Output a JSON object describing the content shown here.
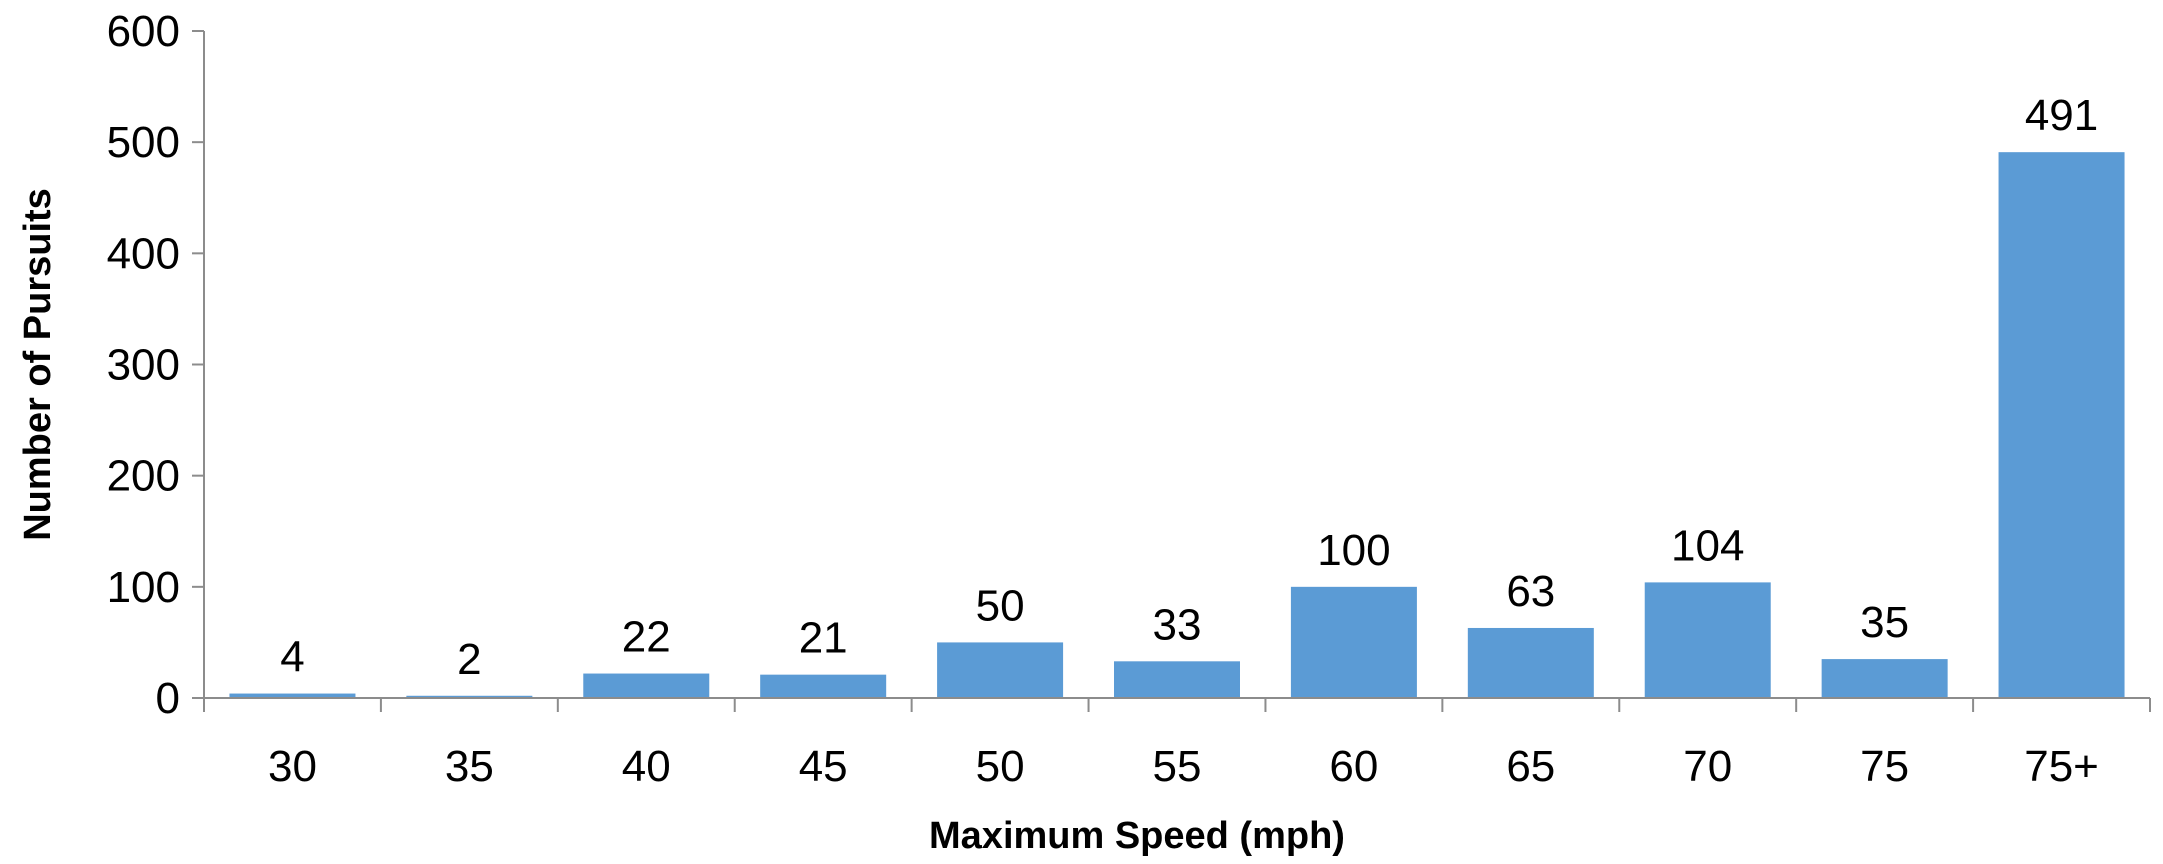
{
  "chart_data": {
    "type": "bar",
    "title": "",
    "xlabel": "Maximum Speed (mph)",
    "ylabel": "Number of Pursuits",
    "categories": [
      "30",
      "35",
      "40",
      "45",
      "50",
      "55",
      "60",
      "65",
      "70",
      "75",
      "75+"
    ],
    "values": [
      4,
      2,
      22,
      21,
      50,
      33,
      100,
      63,
      104,
      35,
      491
    ],
    "ylim": [
      0,
      600
    ],
    "yticks": [
      0,
      100,
      200,
      300,
      400,
      500,
      600
    ],
    "grid": false,
    "legend": "none",
    "data_labels": true,
    "bar_color": "#5b9bd5"
  }
}
